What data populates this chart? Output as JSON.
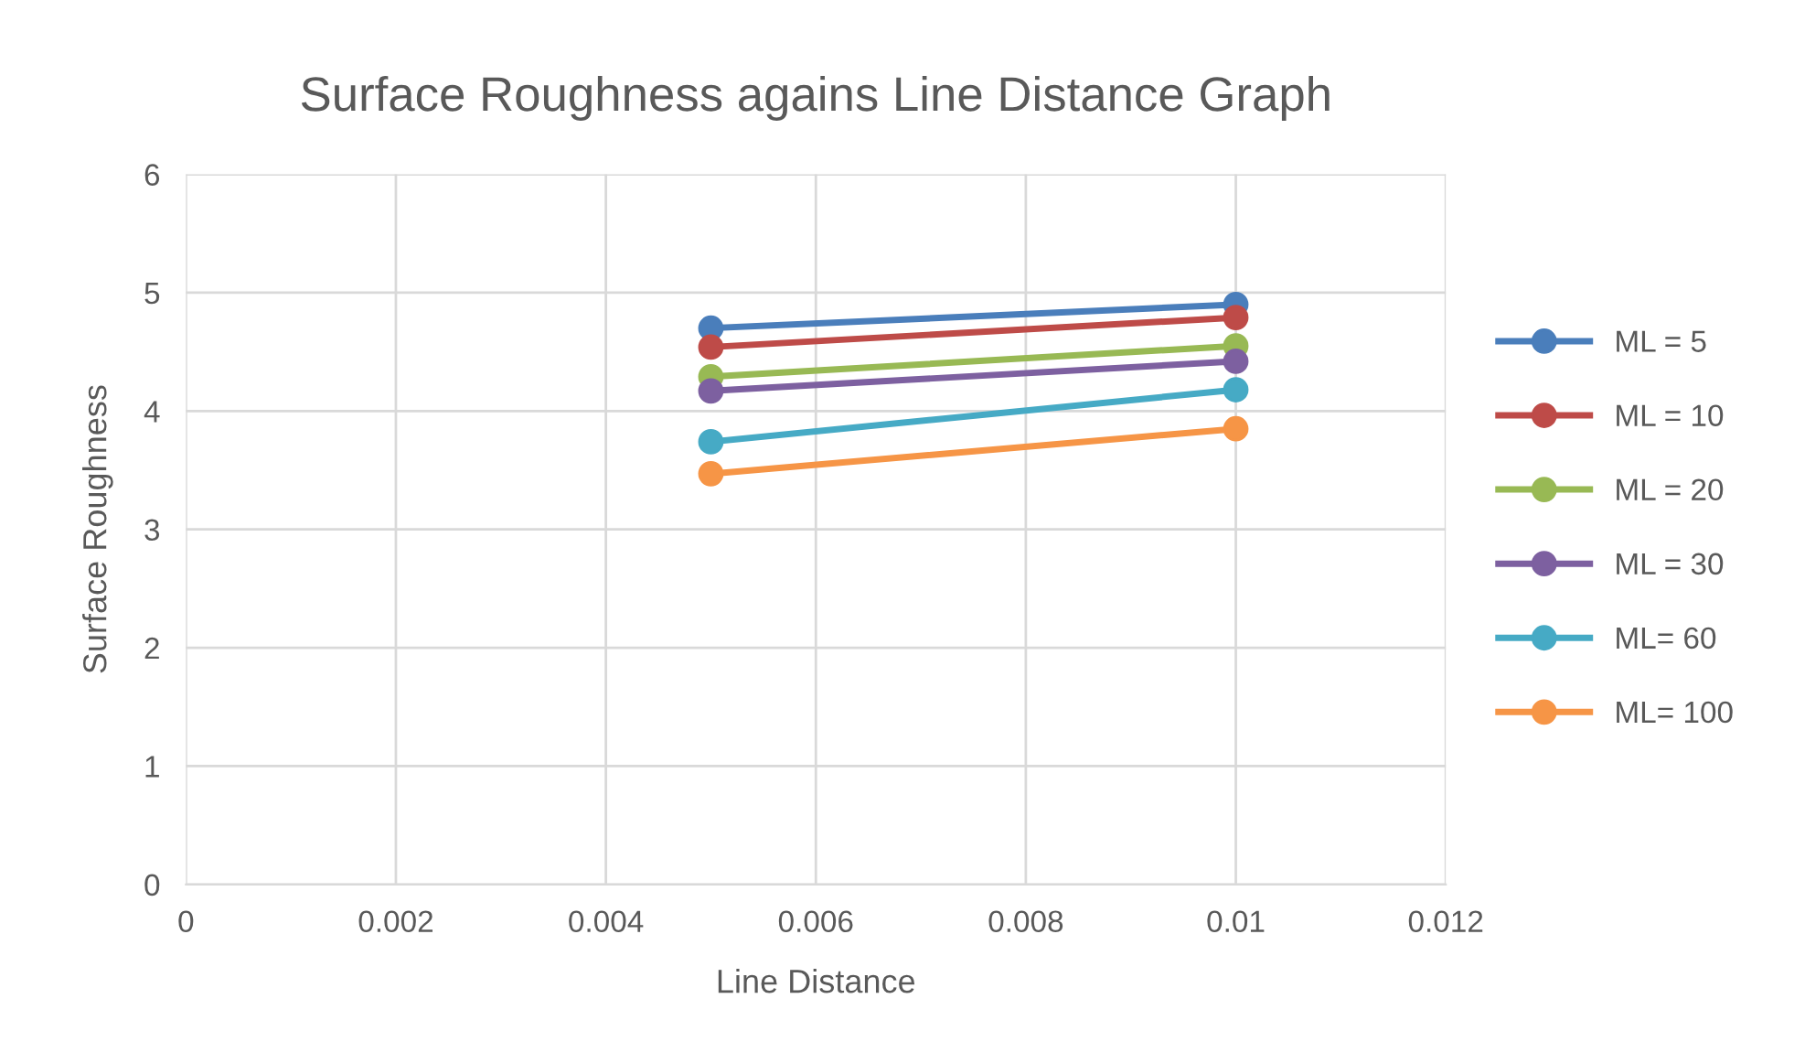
{
  "chart_data": {
    "type": "line",
    "title": "Surface Roughness agains Line Distance Graph",
    "xlabel": "Line Distance",
    "ylabel": "Surface Roughness",
    "x": [
      0.005,
      0.01
    ],
    "xlim": [
      0,
      0.012
    ],
    "xticks": [
      0,
      0.002,
      0.004,
      0.006,
      0.008,
      0.01,
      0.012
    ],
    "ylim": [
      0,
      6
    ],
    "yticks": [
      0,
      1,
      2,
      3,
      4,
      5,
      6
    ],
    "grid": true,
    "legend": "right",
    "marker": "circle",
    "line_style": "solid",
    "series": [
      {
        "name": "ML = 5",
        "color": "#4a7ebb",
        "values": [
          4.7,
          4.9
        ]
      },
      {
        "name": "ML = 10",
        "color": "#be4b48",
        "values": [
          4.54,
          4.79
        ]
      },
      {
        "name": "ML = 20",
        "color": "#98b954",
        "values": [
          4.29,
          4.55
        ]
      },
      {
        "name": "ML = 30",
        "color": "#7d60a0",
        "values": [
          4.17,
          4.42
        ]
      },
      {
        "name": "ML= 60",
        "color": "#46aac5",
        "values": [
          3.74,
          4.18
        ]
      },
      {
        "name": "ML= 100",
        "color": "#f69546",
        "values": [
          3.47,
          3.85
        ]
      }
    ]
  }
}
